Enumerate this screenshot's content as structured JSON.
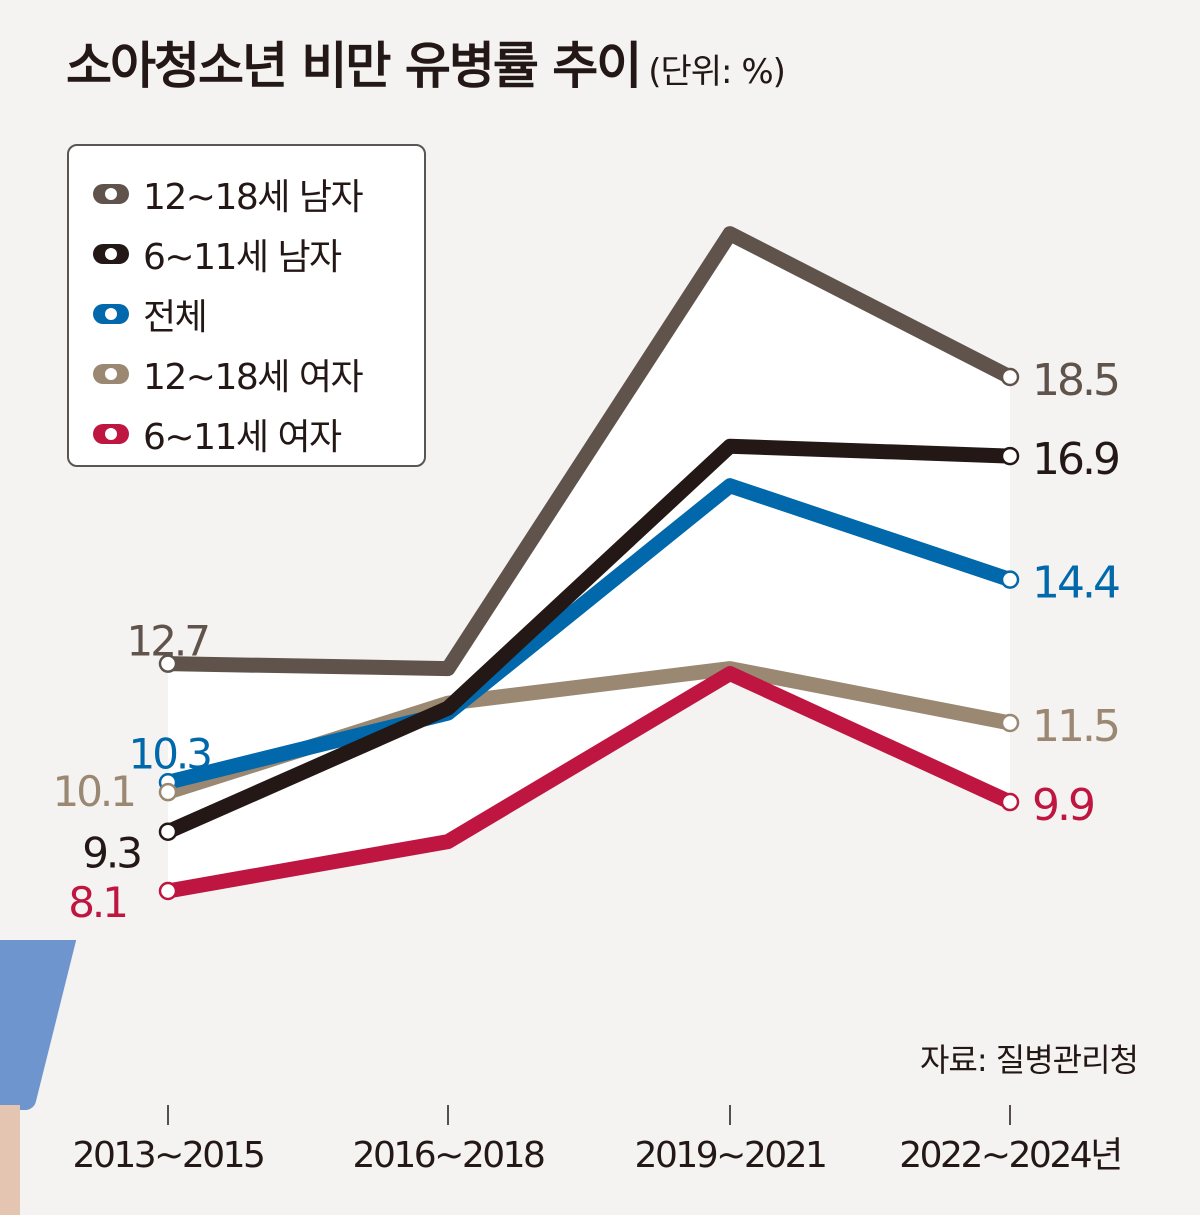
{
  "header": {
    "title": "소아청소년 비만 유병률 추이",
    "unit": "(단위: %)"
  },
  "source": "자료: 질병관리청",
  "chart_data": {
    "type": "line",
    "title": "소아청소년 비만 유병률 추이",
    "subtitle": "(단위: %)",
    "xlabel": "",
    "ylabel": "%",
    "categories": [
      "2013~2015",
      "2016~2018",
      "2019~2021",
      "2022~2024년"
    ],
    "ylim": [
      5,
      22
    ],
    "grid": false,
    "legend_position": "top-left",
    "series": [
      {
        "name": "12~18세 남자",
        "color": "#5f534c",
        "values": [
          12.7,
          12.6,
          21.4,
          18.5
        ],
        "labels": [
          "12.7",
          null,
          null,
          "18.5"
        ]
      },
      {
        "name": "6~11세 남자",
        "color": "#231815",
        "values": [
          9.3,
          11.8,
          17.1,
          16.9
        ],
        "labels": [
          "9.3",
          null,
          null,
          "16.9"
        ]
      },
      {
        "name": "전체",
        "color": "#0068ab",
        "values": [
          10.3,
          11.7,
          16.3,
          14.4
        ],
        "labels": [
          "10.3",
          null,
          null,
          "14.4"
        ]
      },
      {
        "name": "12~18세 여자",
        "color": "#9b8872",
        "values": [
          10.1,
          11.9,
          12.6,
          11.5
        ],
        "labels": [
          "10.1",
          null,
          null,
          "11.5"
        ]
      },
      {
        "name": "6~11세 여자",
        "color": "#be1641",
        "values": [
          8.1,
          9.1,
          12.5,
          9.9
        ],
        "labels": [
          "8.1",
          null,
          null,
          "9.9"
        ]
      }
    ],
    "source": "자료: 질병관리청"
  }
}
